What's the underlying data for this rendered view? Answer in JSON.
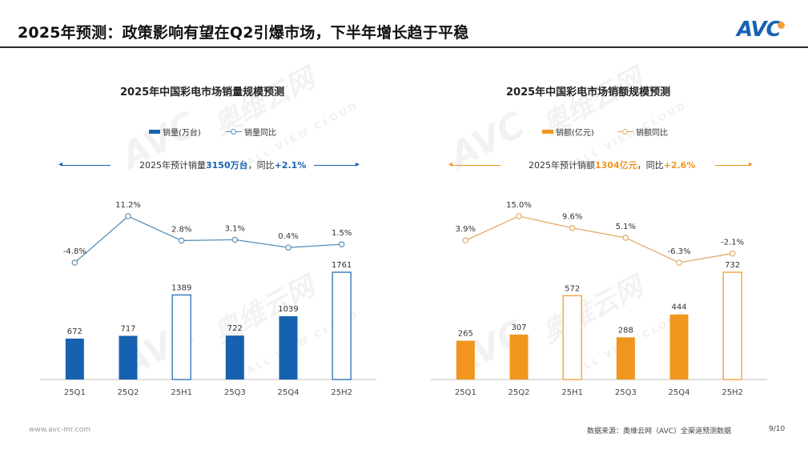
{
  "header": {
    "title": "2025年预测：政策影响有望在Q2引爆市场，下半年增长趋于平稳",
    "logo_text": "AVC"
  },
  "watermarks": {
    "brand": "AVC",
    "brand_cn": "奥维云网",
    "sub": "ALL VIEW CLOUD"
  },
  "colors": {
    "volume_blue": "#1762b0",
    "value_orange": "#f0961e",
    "line_volume": "#5a8fb7",
    "line_value": "#e3a96a"
  },
  "chart_data": [
    {
      "type": "bar",
      "title": "2025年中国彩电市场销量规模预测",
      "legend": [
        "销量(万台)",
        "销量同比"
      ],
      "forecast": {
        "prefix": "2025年预计销量",
        "value": "3150万台",
        "mid": "，同比",
        "yoy": "+2.1%"
      },
      "categories": [
        "25Q1",
        "25Q2",
        "25H1",
        "25Q3",
        "25Q4",
        "25H2"
      ],
      "series": [
        {
          "name": "销量(万台)",
          "kind": "bar",
          "values": [
            672,
            717,
            1389,
            722,
            1039,
            1761
          ],
          "hollow": [
            false,
            false,
            true,
            false,
            false,
            true
          ]
        },
        {
          "name": "销量同比",
          "kind": "line",
          "values": [
            -4.8,
            11.2,
            2.8,
            3.1,
            0.4,
            1.5
          ]
        }
      ],
      "bar_labels": [
        "672",
        "717",
        "1389",
        "722",
        "1039",
        "1761"
      ],
      "line_labels": [
        "-4.8%",
        "11.2%",
        "2.8%",
        "3.1%",
        "0.4%",
        "1.5%"
      ]
    },
    {
      "type": "bar",
      "title": "2025年中国彩电市场销额规模预测",
      "legend": [
        "销额(亿元)",
        "销额同比"
      ],
      "forecast": {
        "prefix": "2025年预计销额",
        "value": "1304亿元",
        "mid": "，同比",
        "yoy": "+2.6%"
      },
      "categories": [
        "25Q1",
        "25Q2",
        "25H1",
        "25Q3",
        "25Q4",
        "25H2"
      ],
      "series": [
        {
          "name": "销额(亿元)",
          "kind": "bar",
          "values": [
            265,
            307,
            572,
            288,
            444,
            732
          ],
          "hollow": [
            false,
            false,
            true,
            false,
            false,
            true
          ]
        },
        {
          "name": "销额同比",
          "kind": "line",
          "values": [
            3.9,
            15.0,
            9.6,
            5.1,
            -6.3,
            -2.1
          ]
        }
      ],
      "bar_labels": [
        "265",
        "307",
        "572",
        "288",
        "444",
        "732"
      ],
      "line_labels": [
        "3.9%",
        "15.0%",
        "9.6%",
        "5.1%",
        "-6.3%",
        "-2.1%"
      ]
    }
  ],
  "footer": {
    "website": "www.avc-mr.com",
    "source": "数据来源：奥维云网（AVC）全渠道预测数据",
    "page": "9/10"
  }
}
